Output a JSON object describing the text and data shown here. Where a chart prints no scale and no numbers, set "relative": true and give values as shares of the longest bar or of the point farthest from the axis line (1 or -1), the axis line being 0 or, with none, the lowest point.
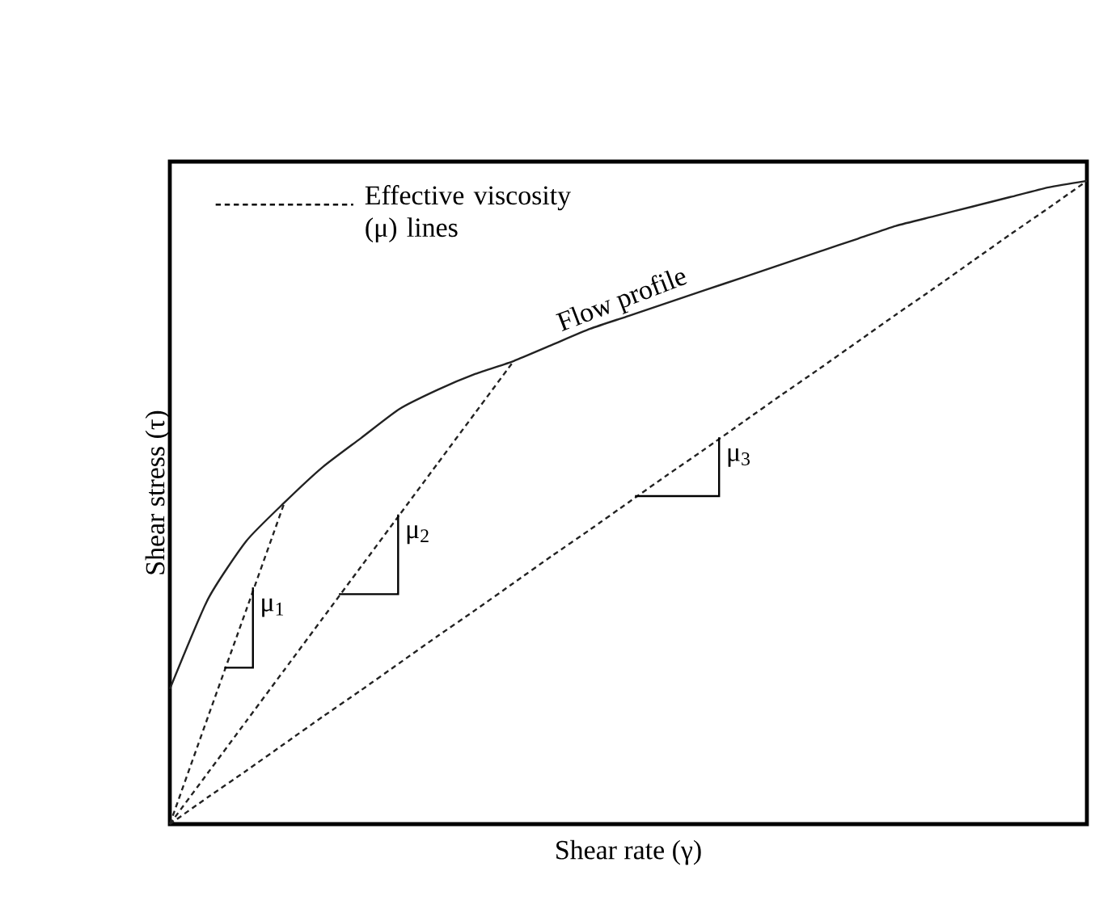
{
  "chart_data": {
    "type": "line",
    "relative": true,
    "xlabel": "Shear rate (γ)",
    "ylabel": "Shear stress (τ)",
    "marker": "none",
    "annotations": [
      "Effective viscosity (μ) lines"
    ],
    "categories": [
      null,
      null,
      null,
      null,
      null,
      null,
      null,
      null,
      null,
      null,
      null,
      null,
      null,
      null,
      null,
      null,
      null,
      null,
      null,
      null,
      null,
      null,
      null,
      null,
      null
    ],
    "series": [
      {
        "name": "Flow profile",
        "color": "#222222",
        "line_style": "solid",
        "values": [
          0.21,
          0.35,
          0.44,
          0.5,
          0.555,
          0.6,
          0.645,
          0.675,
          0.7,
          0.72,
          0.745,
          0.77,
          0.79,
          0.81,
          0.83,
          0.85,
          0.87,
          0.89,
          0.91,
          0.93,
          0.945,
          0.96,
          0.975,
          0.99,
          1
        ]
      },
      {
        "name": "μ$_{1}$",
        "color": "#222222",
        "line_style": "dashed",
        "values": [
          0,
          0.167,
          0.333,
          0.5,
          null,
          null,
          null,
          null,
          null,
          null,
          null,
          null,
          null,
          null,
          null,
          null,
          null,
          null,
          null,
          null,
          null,
          null,
          null,
          null,
          null
        ]
      },
      {
        "name": "μ$_{2}$",
        "color": "#222222",
        "line_style": "dashed",
        "values": [
          0,
          0.08,
          0.16,
          0.24,
          0.32,
          0.4,
          0.48,
          0.56,
          0.64,
          0.72,
          null,
          null,
          null,
          null,
          null,
          null,
          null,
          null,
          null,
          null,
          null,
          null,
          null,
          null,
          null
        ]
      },
      {
        "name": "μ$_{3}$",
        "color": "#222222",
        "line_style": "dashed",
        "values": [
          0,
          0.042,
          0.083,
          0.125,
          0.167,
          0.208,
          0.25,
          0.292,
          0.333,
          0.375,
          0.417,
          0.458,
          0.5,
          0.542,
          0.583,
          0.625,
          0.667,
          0.708,
          0.75,
          0.792,
          0.833,
          0.875,
          0.917,
          0.958,
          1
        ]
      }
    ]
  }
}
